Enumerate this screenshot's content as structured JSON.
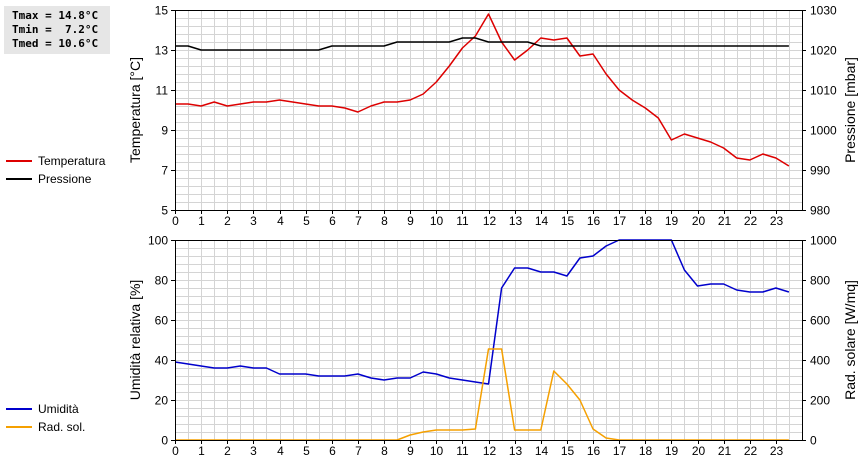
{
  "stats": {
    "tmax": "Tmax = 14.8°C",
    "tmin": "Tmin =  7.2°C",
    "tmed": "Tmed = 10.6°C"
  },
  "colors": {
    "red": "#dd0000",
    "black": "#000000",
    "blue": "#0000cc",
    "orange": "#f5a000",
    "grid": "#d4d4d4"
  },
  "chart_data": [
    {
      "type": "line",
      "x_ticks": [
        0,
        1,
        2,
        3,
        4,
        5,
        6,
        7,
        8,
        9,
        10,
        11,
        12,
        13,
        14,
        15,
        16,
        17,
        18,
        19,
        20,
        21,
        22,
        23
      ],
      "xlim": [
        0,
        24
      ],
      "ylabel": "Temperatura [°C]",
      "ylim": [
        5,
        15
      ],
      "y_ticks": [
        5,
        7,
        9,
        11,
        13,
        15
      ],
      "y2label": "Pressione [mbar]",
      "y2lim": [
        980,
        1030
      ],
      "y2_ticks": [
        980,
        990,
        1000,
        1010,
        1020,
        1030
      ],
      "grid": true,
      "legend_position": "left",
      "series": [
        {
          "name": "Temperatura",
          "axis": "left",
          "color": "#dd0000",
          "x": [
            0,
            0.5,
            1,
            1.5,
            2,
            2.5,
            3,
            3.5,
            4,
            4.5,
            5,
            5.5,
            6,
            6.5,
            7,
            7.5,
            8,
            8.5,
            9,
            9.5,
            10,
            10.5,
            11,
            11.5,
            12,
            12.5,
            13,
            13.5,
            14,
            14.5,
            15,
            15.5,
            16,
            16.5,
            17,
            17.5,
            18,
            18.5,
            19,
            19.5,
            20,
            20.5,
            21,
            21.5,
            22,
            22.5,
            23,
            23.5
          ],
          "values": [
            10.3,
            10.3,
            10.2,
            10.4,
            10.2,
            10.3,
            10.4,
            10.4,
            10.5,
            10.4,
            10.3,
            10.2,
            10.2,
            10.1,
            9.9,
            10.2,
            10.4,
            10.4,
            10.5,
            10.8,
            11.4,
            12.2,
            13.1,
            13.7,
            14.8,
            13.4,
            12.5,
            13.0,
            13.6,
            13.5,
            13.6,
            12.7,
            12.8,
            11.8,
            11.0,
            10.5,
            10.1,
            9.6,
            8.5,
            8.8,
            8.6,
            8.4,
            8.1,
            7.6,
            7.5,
            7.8,
            7.6,
            7.2
          ]
        },
        {
          "name": "Pressione",
          "axis": "right",
          "color": "#000000",
          "x": [
            0,
            0.5,
            1,
            1.5,
            2,
            2.5,
            3,
            3.5,
            4,
            4.5,
            5,
            5.5,
            6,
            6.5,
            7,
            7.5,
            8,
            8.5,
            9,
            9.5,
            10,
            10.5,
            11,
            11.5,
            12,
            12.5,
            13,
            13.5,
            14,
            14.5,
            15,
            15.5,
            16,
            16.5,
            17,
            17.5,
            18,
            18.5,
            19,
            19.5,
            20,
            20.5,
            21,
            21.5,
            22,
            22.5,
            23,
            23.5
          ],
          "values": [
            1021,
            1021,
            1020,
            1020,
            1020,
            1020,
            1020,
            1020,
            1020,
            1020,
            1020,
            1020,
            1021,
            1021,
            1021,
            1021,
            1021,
            1022,
            1022,
            1022,
            1022,
            1022,
            1023,
            1023,
            1022,
            1022,
            1022,
            1022,
            1021,
            1021,
            1021,
            1021,
            1021,
            1021,
            1021,
            1021,
            1021,
            1021,
            1021,
            1021,
            1021,
            1021,
            1021,
            1021,
            1021,
            1021,
            1021,
            1021
          ]
        }
      ]
    },
    {
      "type": "line",
      "x_ticks": [
        0,
        1,
        2,
        3,
        4,
        5,
        6,
        7,
        8,
        9,
        10,
        11,
        12,
        13,
        14,
        15,
        16,
        17,
        18,
        19,
        20,
        21,
        22,
        23
      ],
      "xlim": [
        0,
        24
      ],
      "ylabel": "Umidità relativa [%]",
      "ylim": [
        0,
        100
      ],
      "y_ticks": [
        0,
        20,
        40,
        60,
        80,
        100
      ],
      "y2label": "Rad. solare [W/mq]",
      "y2lim": [
        0,
        1000
      ],
      "y2_ticks": [
        0,
        200,
        400,
        600,
        800,
        1000
      ],
      "grid": true,
      "legend_position": "left",
      "series": [
        {
          "name": "Umidità",
          "axis": "left",
          "color": "#0000cc",
          "x": [
            0,
            0.5,
            1,
            1.5,
            2,
            2.5,
            3,
            3.5,
            4,
            4.5,
            5,
            5.5,
            6,
            6.5,
            7,
            7.5,
            8,
            8.5,
            9,
            9.5,
            10,
            10.5,
            11,
            11.5,
            12,
            12.5,
            13,
            13.5,
            14,
            14.5,
            15,
            15.5,
            16,
            16.5,
            17,
            17.5,
            18,
            18.5,
            19,
            19.5,
            20,
            20.5,
            21,
            21.5,
            22,
            22.5,
            23,
            23.5
          ],
          "values": [
            39,
            38,
            37,
            36,
            36,
            37,
            36,
            36,
            33,
            33,
            33,
            32,
            32,
            32,
            33,
            31,
            30,
            31,
            31,
            34,
            33,
            31,
            30,
            29,
            28,
            76,
            86,
            86,
            84,
            84,
            82,
            91,
            92,
            97,
            100,
            100,
            100,
            100,
            100,
            85,
            77,
            78,
            78,
            75,
            74,
            74,
            76,
            74
          ]
        },
        {
          "name": "Rad. sol.",
          "axis": "right",
          "color": "#f5a000",
          "x": [
            0,
            0.5,
            1,
            1.5,
            2,
            2.5,
            3,
            3.5,
            4,
            4.5,
            5,
            5.5,
            6,
            6.5,
            7,
            7.5,
            8,
            8.5,
            9,
            9.5,
            10,
            10.5,
            11,
            11.5,
            12,
            12.5,
            13,
            13.5,
            14,
            14.5,
            15,
            15.5,
            16,
            16.5,
            17,
            17.5,
            18,
            18.5,
            19,
            19.5,
            20,
            20.5,
            21,
            21.5,
            22,
            22.5,
            23,
            23.5
          ],
          "values": [
            0,
            0,
            0,
            0,
            0,
            0,
            0,
            0,
            0,
            0,
            0,
            0,
            0,
            0,
            0,
            0,
            0,
            0,
            25,
            40,
            50,
            50,
            50,
            55,
            455,
            455,
            50,
            50,
            50,
            345,
            280,
            200,
            55,
            10,
            0,
            0,
            0,
            0,
            0,
            0,
            0,
            0,
            0,
            0,
            0,
            0,
            0,
            0
          ]
        }
      ]
    }
  ]
}
